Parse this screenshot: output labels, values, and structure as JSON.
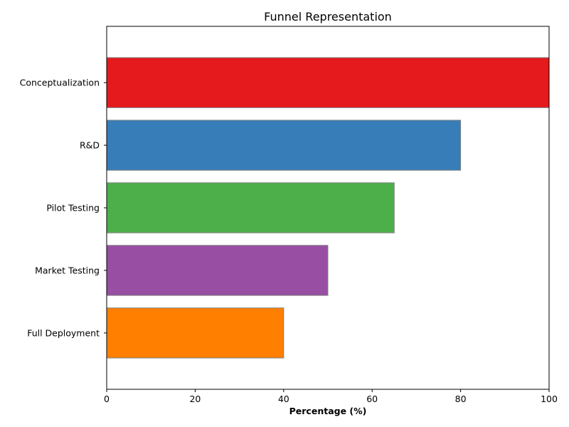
{
  "chart_data": {
    "type": "bar",
    "orientation": "horizontal",
    "title": "Funnel Representation",
    "xlabel": "Percentage (%)",
    "ylabel": "",
    "categories": [
      "Conceptualization",
      "R&D",
      "Pilot Testing",
      "Market Testing",
      "Full Deployment"
    ],
    "values": [
      100,
      80,
      65,
      50,
      40
    ],
    "colors": [
      "#e41a1c",
      "#377eb8",
      "#4daf4a",
      "#984ea3",
      "#ff7f00"
    ],
    "edge_color": "#808080",
    "xlim": [
      0,
      100
    ],
    "xticks": [
      0,
      20,
      40,
      60,
      80,
      100
    ],
    "grid": false,
    "legend": "none"
  }
}
